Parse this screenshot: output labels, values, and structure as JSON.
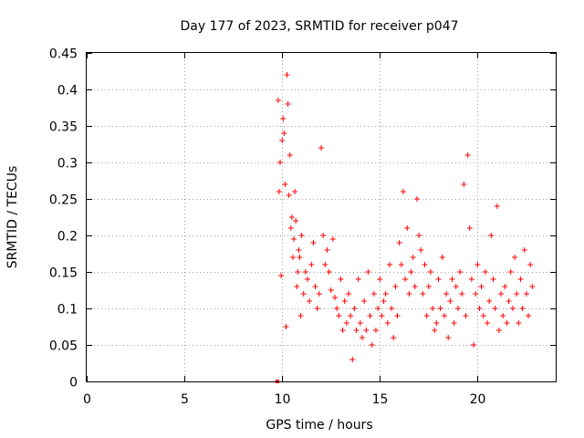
{
  "chart_data": {
    "type": "scatter",
    "title": "Day 177 of 2023, SRMTID for receiver p047",
    "xlabel": "GPS time / hours",
    "ylabel": "SRMTID / TECUs",
    "xlim": [
      0,
      24
    ],
    "ylim": [
      0,
      0.45
    ],
    "xticks": [
      0,
      5,
      10,
      15,
      20
    ],
    "xtick_labels": [
      "0",
      "5",
      "10",
      "15",
      "20"
    ],
    "yticks": [
      0,
      0.05,
      0.1,
      0.15,
      0.2,
      0.25,
      0.3,
      0.35,
      0.4,
      0.45
    ],
    "ytick_labels": [
      "0",
      "0.05",
      "0.1",
      "0.15",
      "0.2",
      "0.25",
      "0.3",
      "0.35",
      "0.4",
      "0.45"
    ],
    "grid": true,
    "marker": "+",
    "color": "#ff0000",
    "series": [
      {
        "name": "SRMTID",
        "x": [
          9.75,
          9.8,
          9.85,
          9.9,
          9.95,
          10.0,
          10.05,
          10.1,
          10.15,
          10.2,
          10.25,
          10.3,
          10.35,
          10.4,
          10.45,
          10.5,
          10.55,
          10.6,
          10.65,
          10.7,
          10.75,
          10.8,
          10.85,
          10.9,
          10.95,
          11.0,
          11.1,
          11.2,
          11.3,
          11.4,
          11.5,
          11.6,
          11.7,
          11.8,
          11.9,
          12.0,
          12.1,
          12.2,
          12.3,
          12.4,
          12.5,
          12.6,
          12.7,
          12.8,
          12.9,
          13.0,
          13.1,
          13.2,
          13.3,
          13.4,
          13.5,
          13.6,
          13.7,
          13.8,
          13.9,
          14.0,
          14.1,
          14.2,
          14.3,
          14.4,
          14.5,
          14.6,
          14.7,
          14.8,
          14.9,
          15.0,
          15.1,
          15.2,
          15.3,
          15.4,
          15.5,
          15.6,
          15.7,
          15.8,
          15.9,
          16.0,
          16.1,
          16.2,
          16.3,
          16.4,
          16.5,
          16.6,
          16.7,
          16.8,
          16.9,
          17.0,
          17.1,
          17.2,
          17.3,
          17.4,
          17.5,
          17.6,
          17.7,
          17.8,
          17.9,
          18.0,
          18.1,
          18.2,
          18.3,
          18.4,
          18.5,
          18.6,
          18.7,
          18.8,
          18.9,
          19.0,
          19.1,
          19.2,
          19.3,
          19.4,
          19.5,
          19.6,
          19.7,
          19.8,
          19.9,
          20.0,
          20.1,
          20.2,
          20.3,
          20.4,
          20.5,
          20.6,
          20.7,
          20.8,
          20.9,
          21.0,
          21.1,
          21.2,
          21.3,
          21.4,
          21.5,
          21.6,
          21.7,
          21.8,
          21.9,
          22.0,
          22.1,
          22.2,
          22.3,
          22.4,
          22.5,
          22.6,
          22.7,
          22.8
        ],
        "y": [
          0.0,
          0.385,
          0.26,
          0.3,
          0.145,
          0.33,
          0.36,
          0.34,
          0.27,
          0.075,
          0.42,
          0.38,
          0.255,
          0.31,
          0.21,
          0.225,
          0.17,
          0.195,
          0.26,
          0.22,
          0.13,
          0.15,
          0.18,
          0.17,
          0.09,
          0.2,
          0.12,
          0.15,
          0.14,
          0.11,
          0.16,
          0.19,
          0.13,
          0.1,
          0.12,
          0.32,
          0.2,
          0.16,
          0.18,
          0.15,
          0.125,
          0.195,
          0.115,
          0.1,
          0.09,
          0.14,
          0.07,
          0.11,
          0.08,
          0.12,
          0.09,
          0.03,
          0.1,
          0.07,
          0.14,
          0.08,
          0.06,
          0.11,
          0.07,
          0.15,
          0.09,
          0.05,
          0.12,
          0.07,
          0.1,
          0.14,
          0.09,
          0.11,
          0.12,
          0.08,
          0.16,
          0.1,
          0.06,
          0.13,
          0.09,
          0.19,
          0.16,
          0.26,
          0.14,
          0.21,
          0.12,
          0.15,
          0.17,
          0.13,
          0.25,
          0.2,
          0.18,
          0.12,
          0.16,
          0.09,
          0.13,
          0.15,
          0.1,
          0.07,
          0.08,
          0.14,
          0.1,
          0.17,
          0.09,
          0.12,
          0.06,
          0.11,
          0.14,
          0.08,
          0.13,
          0.1,
          0.15,
          0.12,
          0.27,
          0.09,
          0.31,
          0.21,
          0.14,
          0.05,
          0.12,
          0.16,
          0.1,
          0.13,
          0.09,
          0.15,
          0.08,
          0.11,
          0.2,
          0.14,
          0.1,
          0.24,
          0.07,
          0.12,
          0.09,
          0.13,
          0.08,
          0.11,
          0.15,
          0.1,
          0.17,
          0.12,
          0.08,
          0.14,
          0.1,
          0.18,
          0.12,
          0.09,
          0.16,
          0.13
        ]
      }
    ]
  }
}
